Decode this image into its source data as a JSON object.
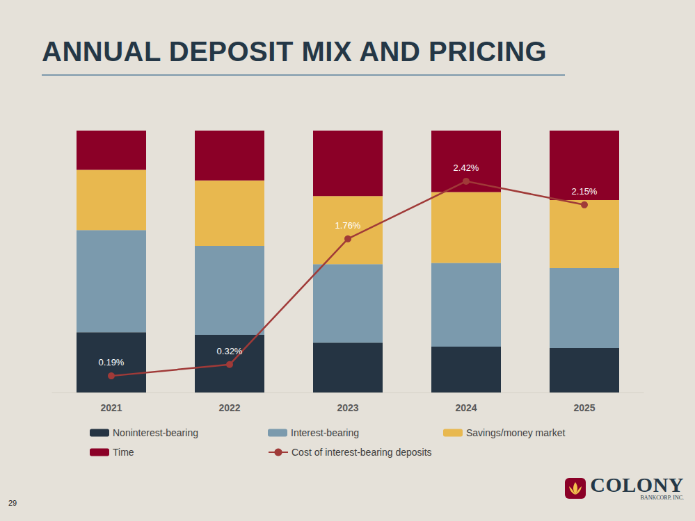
{
  "title": "ANNUAL DEPOSIT MIX AND PRICING",
  "page_number": "29",
  "logo_text": [
    "COLONY",
    "BANKCORP, INC."
  ],
  "chart_data": {
    "type": "bar",
    "stacked": true,
    "grid": false,
    "legend": "bottom",
    "tick_labels": "x",
    "categories": [
      "2021",
      "2022",
      "2023",
      "2024",
      "2025"
    ],
    "ylim": [
      0,
      100
    ],
    "yticks": [
      0,
      100
    ],
    "y2lim": [
      0,
      3
    ],
    "y2ticks": [
      0,
      3
    ],
    "series": [
      {
        "name": "Noninterest-bearing",
        "color": "#253443",
        "values": [
          23,
          22,
          19,
          17.5,
          17
        ]
      },
      {
        "name": "Interest-bearing",
        "color": "#7b9aad",
        "values": [
          39,
          34,
          30,
          32,
          30.5
        ]
      },
      {
        "name": "Savings/money market",
        "color": "#e8b84f",
        "values": [
          23,
          25,
          26,
          27,
          26
        ]
      },
      {
        "name": "Time",
        "color": "#8b0027",
        "values": [
          15,
          19,
          25,
          23.5,
          26.5
        ]
      },
      {
        "name": "Cost of interest-bearing deposits",
        "type": "line",
        "axis": "y2",
        "color": "#a03a38",
        "marker": "circle",
        "line_style": "solid",
        "data_labels": true,
        "values": [
          0.19,
          0.32,
          1.76,
          2.42,
          2.15
        ],
        "value_labels": [
          "0.19%",
          "0.32%",
          "1.76%",
          "2.42%",
          "2.15%"
        ]
      }
    ]
  }
}
